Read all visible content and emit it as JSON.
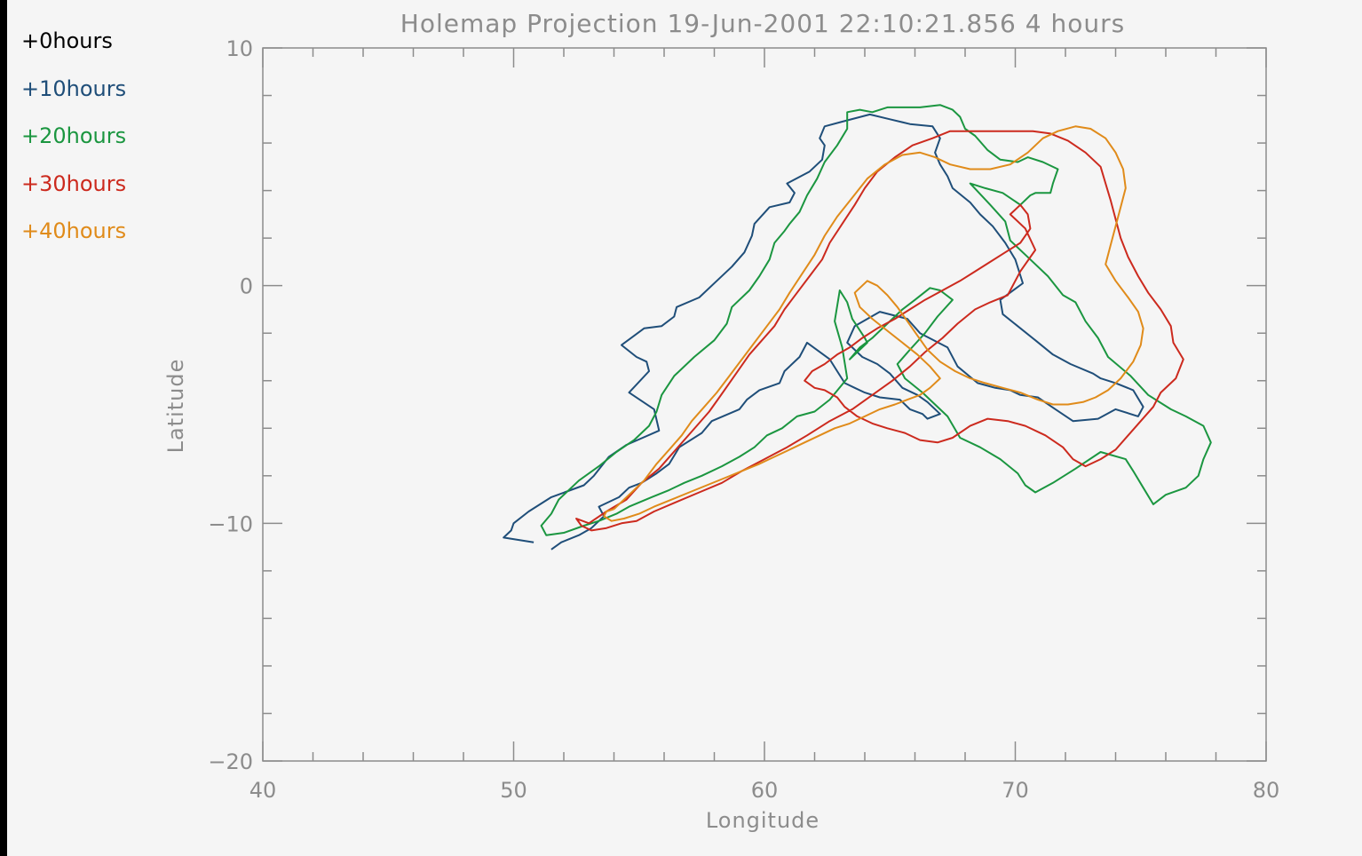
{
  "chart_data": {
    "type": "line",
    "title": "Holemap Projection 19-Jun-2001 22:10:21.856 4 hours",
    "xlabel": "Longitude",
    "ylabel": "Latitude",
    "xlim": [
      40,
      80
    ],
    "ylim": [
      -20,
      10
    ],
    "xticks": [
      40,
      50,
      60,
      70,
      80
    ],
    "yticks": [
      -20,
      -10,
      0,
      10
    ],
    "xtick_labels": [
      "40",
      "50",
      "60",
      "70",
      "80"
    ],
    "ytick_labels": [
      "−20",
      "−10",
      "0",
      "10"
    ],
    "grid": false,
    "legend_position": "top-left outside",
    "series": [
      {
        "name": "+0hours",
        "color": "#000000",
        "x": [],
        "y": []
      },
      {
        "name": "+10hours",
        "color": "#1f4e79",
        "x": [
          50.8,
          49.6,
          49.9,
          50.0,
          50.6,
          51.5,
          52.8,
          53.2,
          53.8,
          54.5,
          55.8,
          55.6,
          54.6,
          55.4,
          55.3,
          54.9,
          54.3,
          55.2,
          55.9,
          56.4,
          56.5,
          57.4,
          58.1,
          58.7,
          59.2,
          59.5,
          59.6,
          60.2,
          61.0,
          61.2,
          60.9,
          61.8,
          62.3,
          62.4,
          62.2,
          62.4,
          63.1,
          64.2,
          65.0,
          65.8,
          66.7,
          67.0,
          66.8,
          67.0,
          67.3,
          67.5,
          68.2,
          68.6,
          69.1,
          69.6,
          70.0,
          70.3,
          69.4,
          69.5,
          70.8,
          71.5,
          72.2,
          73.1,
          73.4,
          74.0,
          74.7,
          75.1,
          74.9,
          74.0,
          73.3,
          72.3,
          71.6,
          70.9,
          70.2,
          69.8,
          69.2,
          68.5,
          67.7,
          67.3,
          66.2,
          65.7,
          64.6,
          63.6,
          63.3,
          63.9,
          64.5,
          65.0,
          65.5,
          66.1,
          66.5,
          67.0,
          66.5,
          66.3,
          65.8,
          65.4,
          64.6,
          64.0,
          63.6,
          63.2,
          62.9,
          62.6,
          61.7,
          61.4,
          60.8,
          60.6,
          59.8,
          59.3,
          59.0,
          57.9,
          57.5,
          56.6,
          56.2,
          55.7,
          55.1,
          54.6,
          54.2,
          53.4,
          53.6,
          53.1,
          52.6,
          51.9,
          51.5
        ],
        "y": [
          -10.8,
          -10.6,
          -10.3,
          -10.0,
          -9.5,
          -8.9,
          -8.4,
          -8.0,
          -7.2,
          -6.7,
          -6.1,
          -5.2,
          -4.5,
          -3.6,
          -3.2,
          -3.0,
          -2.5,
          -1.8,
          -1.7,
          -1.3,
          -0.9,
          -0.5,
          0.2,
          0.8,
          1.4,
          2.1,
          2.6,
          3.3,
          3.5,
          3.9,
          4.3,
          4.8,
          5.3,
          5.9,
          6.2,
          6.7,
          6.9,
          7.2,
          7.0,
          6.8,
          6.7,
          6.2,
          5.6,
          5.1,
          4.6,
          4.1,
          3.5,
          3.0,
          2.5,
          1.8,
          1.1,
          0.1,
          -0.6,
          -1.2,
          -2.3,
          -2.9,
          -3.3,
          -3.7,
          -3.9,
          -4.1,
          -4.4,
          -5.1,
          -5.5,
          -5.2,
          -5.6,
          -5.7,
          -5.2,
          -4.7,
          -4.6,
          -4.4,
          -4.3,
          -4.1,
          -3.4,
          -2.6,
          -2.0,
          -1.4,
          -1.1,
          -1.7,
          -2.4,
          -3.0,
          -3.3,
          -3.7,
          -4.3,
          -4.6,
          -4.9,
          -5.4,
          -5.6,
          -5.4,
          -5.2,
          -4.8,
          -4.7,
          -4.5,
          -4.3,
          -4.1,
          -3.6,
          -3.1,
          -2.4,
          -3.0,
          -3.6,
          -4.1,
          -4.4,
          -4.8,
          -5.2,
          -5.7,
          -6.2,
          -6.8,
          -7.5,
          -7.9,
          -8.3,
          -8.5,
          -8.9,
          -9.3,
          -9.7,
          -10.2,
          -10.5,
          -10.8,
          -11.1
        ]
      },
      {
        "name": "+20hours",
        "color": "#1b9640",
        "x": [
          51.5,
          51.8,
          52.6,
          53.4,
          54.1,
          54.8,
          55.4,
          55.7,
          55.9,
          56.4,
          57.2,
          58.0,
          58.5,
          58.7,
          59.4,
          59.8,
          60.2,
          60.4,
          60.8,
          61.0,
          61.4,
          61.7,
          62.1,
          62.4,
          62.9,
          63.3,
          63.3,
          63.8,
          64.3,
          64.9,
          65.5,
          66.2,
          67.0,
          67.5,
          67.8,
          68.0,
          68.4,
          68.9,
          69.4,
          70.1,
          70.5,
          71.1,
          71.7,
          71.5,
          71.4,
          70.8,
          70.6,
          70.2,
          69.5,
          68.8,
          68.2,
          69.0,
          69.6,
          69.8,
          70.6,
          71.3,
          71.9,
          72.4,
          72.8,
          73.3,
          73.7,
          74.6,
          75.3,
          76.2,
          76.8,
          77.5,
          77.8,
          77.5,
          77.3,
          76.8,
          76.0,
          75.5,
          75.1,
          74.7,
          74.4,
          73.4,
          72.4,
          71.5,
          70.8,
          70.4,
          70.1,
          69.4,
          68.6,
          67.8,
          67.3,
          66.3,
          65.6,
          65.3,
          65.8,
          66.4,
          66.9,
          67.5,
          67.0,
          66.6,
          66.0,
          65.5,
          64.9,
          64.3,
          63.8,
          63.4,
          64.1,
          64.0,
          63.5,
          63.3,
          63.0,
          62.8,
          63.1,
          63.3,
          62.6,
          62.0,
          61.3,
          60.7,
          60.1,
          59.6,
          59.0,
          58.3,
          57.5,
          56.8,
          56.2,
          55.5,
          54.6,
          54.1,
          53.4,
          52.8,
          52.0,
          51.3,
          51.1,
          51.5
        ],
        "y": [
          -9.6,
          -9.0,
          -8.2,
          -7.6,
          -7.0,
          -6.5,
          -5.9,
          -5.3,
          -4.6,
          -3.8,
          -3.0,
          -2.3,
          -1.6,
          -0.9,
          -0.2,
          0.4,
          1.1,
          1.8,
          2.3,
          2.6,
          3.1,
          3.8,
          4.5,
          5.2,
          5.9,
          6.6,
          7.3,
          7.4,
          7.3,
          7.5,
          7.5,
          7.5,
          7.6,
          7.4,
          7.1,
          6.6,
          6.3,
          5.7,
          5.3,
          5.2,
          5.4,
          5.2,
          4.9,
          4.3,
          3.9,
          3.9,
          3.8,
          3.4,
          3.9,
          4.1,
          4.3,
          3.4,
          2.7,
          1.9,
          1.1,
          0.4,
          -0.4,
          -0.7,
          -1.5,
          -2.2,
          -3.0,
          -3.8,
          -4.6,
          -5.2,
          -5.5,
          -5.9,
          -6.6,
          -7.3,
          -8.0,
          -8.5,
          -8.8,
          -9.2,
          -8.5,
          -7.8,
          -7.3,
          -7.0,
          -7.7,
          -8.3,
          -8.7,
          -8.4,
          -7.9,
          -7.3,
          -6.8,
          -6.4,
          -5.5,
          -4.5,
          -3.9,
          -3.3,
          -2.7,
          -2.0,
          -1.3,
          -0.6,
          -0.2,
          -0.1,
          -0.6,
          -1.0,
          -1.6,
          -2.2,
          -2.6,
          -3.1,
          -2.4,
          -2.2,
          -1.4,
          -0.7,
          -0.2,
          -1.5,
          -2.6,
          -3.9,
          -4.8,
          -5.3,
          -5.5,
          -6.0,
          -6.3,
          -6.8,
          -7.2,
          -7.6,
          -8.0,
          -8.3,
          -8.6,
          -8.9,
          -9.3,
          -9.6,
          -9.9,
          -10.1,
          -10.4,
          -10.5,
          -10.1,
          -9.6
        ]
      },
      {
        "name": "+30hours",
        "color": "#cc2a1e",
        "x": [
          53.0,
          53.7,
          54.5,
          55.1,
          55.8,
          56.3,
          56.8,
          57.3,
          57.8,
          58.2,
          58.6,
          59.0,
          59.4,
          59.9,
          60.4,
          60.8,
          61.3,
          61.8,
          62.3,
          62.6,
          63.1,
          63.6,
          64.0,
          64.5,
          65.2,
          65.9,
          66.7,
          67.4,
          68.1,
          68.8,
          69.4,
          70.0,
          70.7,
          71.4,
          72.1,
          72.8,
          73.4,
          73.6,
          73.8,
          74.0,
          74.2,
          74.5,
          74.9,
          75.3,
          75.8,
          76.2,
          76.3,
          76.7,
          76.4,
          75.8,
          75.5,
          75.0,
          74.5,
          74.0,
          73.4,
          72.8,
          72.3,
          71.9,
          71.2,
          70.4,
          69.7,
          68.9,
          68.2,
          67.5,
          66.9,
          66.2,
          65.6,
          64.9,
          64.3,
          63.7,
          63.2,
          62.9,
          62.4,
          62.0,
          61.6,
          61.9,
          62.4,
          62.9,
          63.4,
          63.9,
          64.5,
          65.2,
          65.8,
          66.4,
          67.1,
          67.8,
          68.4,
          69.0,
          69.6,
          70.2,
          70.6,
          70.5,
          70.2,
          69.8,
          70.4,
          70.8,
          70.2,
          69.7,
          69.0,
          68.4,
          67.7,
          67.1,
          66.4,
          65.8,
          65.1,
          64.3,
          63.5,
          62.6,
          61.7,
          60.9,
          60.0,
          59.1,
          58.3,
          57.4,
          56.5,
          55.6,
          54.9,
          54.3,
          53.7,
          53.1,
          52.7,
          52.5,
          53.0
        ],
        "y": [
          -10.0,
          -9.5,
          -9.0,
          -8.3,
          -7.7,
          -7.1,
          -6.5,
          -5.9,
          -5.3,
          -4.7,
          -4.1,
          -3.5,
          -2.9,
          -2.3,
          -1.7,
          -1.0,
          -0.3,
          0.4,
          1.1,
          1.8,
          2.6,
          3.4,
          4.1,
          4.8,
          5.4,
          5.9,
          6.2,
          6.5,
          6.5,
          6.5,
          6.5,
          6.5,
          6.5,
          6.4,
          6.1,
          5.6,
          5.0,
          4.3,
          3.6,
          2.8,
          2.0,
          1.2,
          0.4,
          -0.3,
          -1.0,
          -1.7,
          -2.4,
          -3.1,
          -3.9,
          -4.5,
          -5.1,
          -5.7,
          -6.3,
          -6.9,
          -7.3,
          -7.6,
          -7.3,
          -6.8,
          -6.3,
          -5.9,
          -5.7,
          -5.6,
          -5.9,
          -6.4,
          -6.6,
          -6.5,
          -6.2,
          -6.0,
          -5.8,
          -5.5,
          -5.1,
          -4.7,
          -4.4,
          -4.3,
          -4.0,
          -3.6,
          -3.3,
          -2.9,
          -2.6,
          -2.2,
          -1.8,
          -1.4,
          -1.0,
          -0.6,
          -0.2,
          0.2,
          0.6,
          1.0,
          1.4,
          1.8,
          2.4,
          3.0,
          3.4,
          3.0,
          2.4,
          1.5,
          0.6,
          -0.4,
          -0.7,
          -1.0,
          -1.6,
          -2.2,
          -2.8,
          -3.4,
          -4.0,
          -4.6,
          -5.2,
          -5.7,
          -6.3,
          -6.8,
          -7.3,
          -7.8,
          -8.3,
          -8.7,
          -9.1,
          -9.5,
          -9.9,
          -10.0,
          -10.2,
          -10.3,
          -10.1,
          -9.8,
          -10.0
        ]
      },
      {
        "name": "+40hours",
        "color": "#e08b1a",
        "x": [
          54.0,
          54.6,
          55.2,
          55.7,
          56.2,
          56.7,
          57.1,
          57.6,
          58.1,
          58.6,
          59.1,
          59.6,
          60.1,
          60.6,
          61.0,
          61.5,
          62.0,
          62.4,
          62.9,
          63.5,
          64.1,
          64.8,
          65.5,
          66.2,
          66.8,
          67.4,
          68.2,
          69.0,
          69.8,
          70.5,
          71.1,
          71.7,
          72.4,
          73.0,
          73.6,
          74.0,
          74.3,
          74.4,
          74.2,
          74.0,
          73.8,
          73.6,
          74.0,
          74.5,
          74.9,
          75.1,
          75.0,
          74.7,
          74.2,
          73.7,
          73.2,
          72.7,
          72.1,
          71.5,
          70.9,
          70.2,
          69.5,
          68.8,
          68.2,
          67.6,
          67.0,
          66.5,
          66.1,
          65.7,
          65.3,
          64.9,
          64.5,
          64.1,
          63.6,
          63.8,
          64.3,
          64.9,
          65.5,
          66.1,
          66.6,
          67.0,
          66.6,
          66.2,
          65.7,
          65.2,
          64.6,
          64.0,
          63.4,
          62.8,
          62.2,
          61.6,
          61.0,
          60.4,
          59.8,
          59.1,
          58.4,
          57.7,
          57.0,
          56.3,
          55.6,
          55.0,
          54.4,
          53.9,
          53.6,
          53.7,
          54.0
        ],
        "y": [
          -9.4,
          -8.8,
          -8.2,
          -7.5,
          -6.9,
          -6.3,
          -5.7,
          -5.1,
          -4.5,
          -3.8,
          -3.1,
          -2.4,
          -1.7,
          -1.0,
          -0.3,
          0.5,
          1.3,
          2.1,
          2.9,
          3.7,
          4.5,
          5.1,
          5.5,
          5.6,
          5.4,
          5.1,
          4.9,
          4.9,
          5.1,
          5.6,
          6.2,
          6.5,
          6.7,
          6.6,
          6.2,
          5.6,
          4.9,
          4.1,
          3.3,
          2.5,
          1.7,
          0.9,
          0.2,
          -0.5,
          -1.1,
          -1.8,
          -2.5,
          -3.2,
          -3.9,
          -4.4,
          -4.7,
          -4.9,
          -5.0,
          -5.0,
          -4.8,
          -4.5,
          -4.3,
          -4.1,
          -3.9,
          -3.6,
          -3.2,
          -2.7,
          -2.1,
          -1.5,
          -0.9,
          -0.4,
          0.0,
          0.2,
          -0.3,
          -0.9,
          -1.4,
          -1.9,
          -2.4,
          -2.9,
          -3.4,
          -3.9,
          -4.3,
          -4.6,
          -4.8,
          -5.0,
          -5.2,
          -5.5,
          -5.8,
          -6.0,
          -6.3,
          -6.6,
          -6.9,
          -7.2,
          -7.5,
          -7.8,
          -8.1,
          -8.4,
          -8.7,
          -9.0,
          -9.3,
          -9.6,
          -9.8,
          -9.9,
          -9.7,
          -9.5,
          -9.4
        ]
      }
    ]
  }
}
